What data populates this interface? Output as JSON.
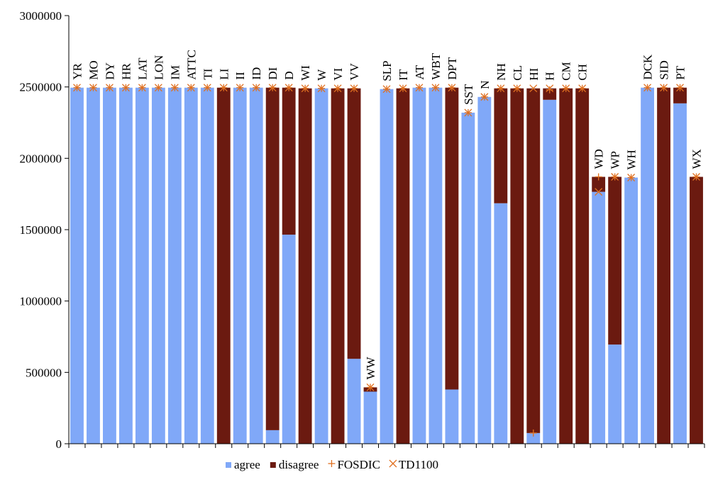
{
  "chart_data": {
    "type": "bar",
    "stacked": true,
    "categories": [
      "YR",
      "MO",
      "DY",
      "HR",
      "LAT",
      "LON",
      "IM",
      "ATTC",
      "TI",
      "LI",
      "II",
      "ID",
      "DI",
      "D",
      "WI",
      "W",
      "VI",
      "VV",
      "WW",
      "SLP",
      "IT",
      "AT",
      "WBT",
      "DPT",
      "SST",
      "N",
      "NH",
      "CL",
      "HI",
      "H",
      "CM",
      "CH",
      "WD",
      "WP",
      "WH",
      "DCK",
      "SID",
      "PT",
      "WX"
    ],
    "series": [
      {
        "name": "agree",
        "color": "#80a8f8",
        "kind": "bar",
        "values": [
          2495000,
          2495000,
          2495000,
          2495000,
          2495000,
          2495000,
          2495000,
          2495000,
          2495000,
          0,
          2495000,
          2495000,
          95000,
          1465000,
          0,
          2490000,
          0,
          595000,
          365000,
          2485000,
          0,
          2495000,
          2495000,
          380000,
          2320000,
          2430000,
          1685000,
          0,
          75000,
          2410000,
          0,
          0,
          1765000,
          695000,
          1865000,
          2495000,
          0,
          2385000,
          0
        ]
      },
      {
        "name": "disagree",
        "color": "#6b1a10",
        "kind": "bar",
        "values": [
          0,
          0,
          0,
          0,
          0,
          0,
          0,
          0,
          0,
          2495000,
          0,
          0,
          2400000,
          1030000,
          2490000,
          0,
          2490000,
          1895000,
          30000,
          0,
          2490000,
          0,
          0,
          2115000,
          0,
          0,
          805000,
          2490000,
          2415000,
          80000,
          2490000,
          2490000,
          105000,
          1175000,
          0,
          0,
          2495000,
          110000,
          1870000
        ]
      },
      {
        "name": "FOSDIC",
        "color": "#e07020",
        "kind": "plus",
        "values": [
          2495000,
          2495000,
          2495000,
          2495000,
          2495000,
          2495000,
          2495000,
          2495000,
          2495000,
          2495000,
          2495000,
          2495000,
          2495000,
          2495000,
          2490000,
          2490000,
          2490000,
          2490000,
          395000,
          2485000,
          2490000,
          2495000,
          2495000,
          2495000,
          2320000,
          2430000,
          2490000,
          2490000,
          75000,
          2480000,
          2490000,
          2490000,
          1870000,
          1870000,
          1865000,
          2495000,
          2495000,
          2495000,
          1870000
        ]
      },
      {
        "name": "TD1100",
        "color": "#e07020",
        "kind": "cross",
        "values": [
          2495000,
          2495000,
          2495000,
          2495000,
          2495000,
          2495000,
          2495000,
          2495000,
          2495000,
          2495000,
          2495000,
          2495000,
          2495000,
          2495000,
          2490000,
          2490000,
          2490000,
          2490000,
          395000,
          2485000,
          2490000,
          2495000,
          2495000,
          2495000,
          2320000,
          2430000,
          2490000,
          2490000,
          2490000,
          2490000,
          2490000,
          2490000,
          1765000,
          1870000,
          1865000,
          2495000,
          2495000,
          2495000,
          1870000
        ]
      }
    ],
    "ylim": [
      0,
      3000000
    ],
    "yticks": [
      0,
      500000,
      1000000,
      1500000,
      2000000,
      2500000,
      3000000
    ],
    "grid": false,
    "legend": "bottom"
  }
}
